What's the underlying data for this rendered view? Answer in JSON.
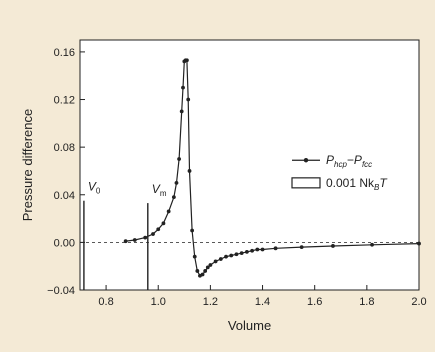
{
  "colors": {
    "background": "#f4ead6",
    "plot_area": "#ffffff",
    "ink": "#222222"
  },
  "chart_data": {
    "type": "line",
    "title": "",
    "xlabel": "Volume",
    "ylabel": "Pressure difference",
    "xlim": [
      0.7,
      2.0
    ],
    "ylim": [
      -0.04,
      0.17
    ],
    "xticks": [
      0.8,
      1.0,
      1.2,
      1.4,
      1.6,
      1.8,
      2.0
    ],
    "xtick_labels": [
      "0.8",
      "1.0",
      "1.2",
      "1.4",
      "1.6",
      "1.8",
      "2.0"
    ],
    "yticks": [
      -0.04,
      0.0,
      0.04,
      0.08,
      0.12,
      0.16
    ],
    "ytick_labels": [
      "−0.04",
      "0.00",
      "0.04",
      "0.08",
      "0.12",
      "0.16"
    ],
    "grid": false,
    "zero_line": true,
    "series": [
      {
        "name": "P_hcp−P_fcc",
        "marker": "circle",
        "x": [
          0.875,
          0.91,
          0.95,
          0.98,
          1.0,
          1.02,
          1.04,
          1.06,
          1.07,
          1.08,
          1.09,
          1.095,
          1.1,
          1.105,
          1.11,
          1.115,
          1.12,
          1.13,
          1.14,
          1.15,
          1.16,
          1.17,
          1.18,
          1.19,
          1.2,
          1.22,
          1.24,
          1.26,
          1.28,
          1.3,
          1.32,
          1.34,
          1.36,
          1.38,
          1.4,
          1.45,
          1.55,
          1.67,
          1.82,
          2.0
        ],
        "values": [
          0.001,
          0.002,
          0.004,
          0.007,
          0.011,
          0.016,
          0.026,
          0.038,
          0.05,
          0.07,
          0.11,
          0.13,
          0.152,
          0.153,
          0.153,
          0.12,
          0.06,
          0.01,
          -0.012,
          -0.024,
          -0.028,
          -0.027,
          -0.024,
          -0.021,
          -0.019,
          -0.016,
          -0.014,
          -0.012,
          -0.011,
          -0.01,
          -0.009,
          -0.008,
          -0.007,
          -0.006,
          -0.006,
          -0.005,
          -0.004,
          -0.003,
          -0.002,
          -0.001
        ]
      }
    ],
    "vertical_markers": [
      {
        "label": "V",
        "subscript": "0",
        "x": 0.715,
        "y_top": 0.035
      },
      {
        "label": "V",
        "subscript": "m",
        "x": 0.96,
        "y_top": 0.033
      }
    ],
    "legend": {
      "placement": "right",
      "series_label_main": "P",
      "series_label_sub1": "hcp",
      "series_label_mid": "−P",
      "series_label_sub2": "fcc",
      "box_label": "0.001 Nk",
      "box_label_sub": "B",
      "box_label_end": "T"
    }
  }
}
